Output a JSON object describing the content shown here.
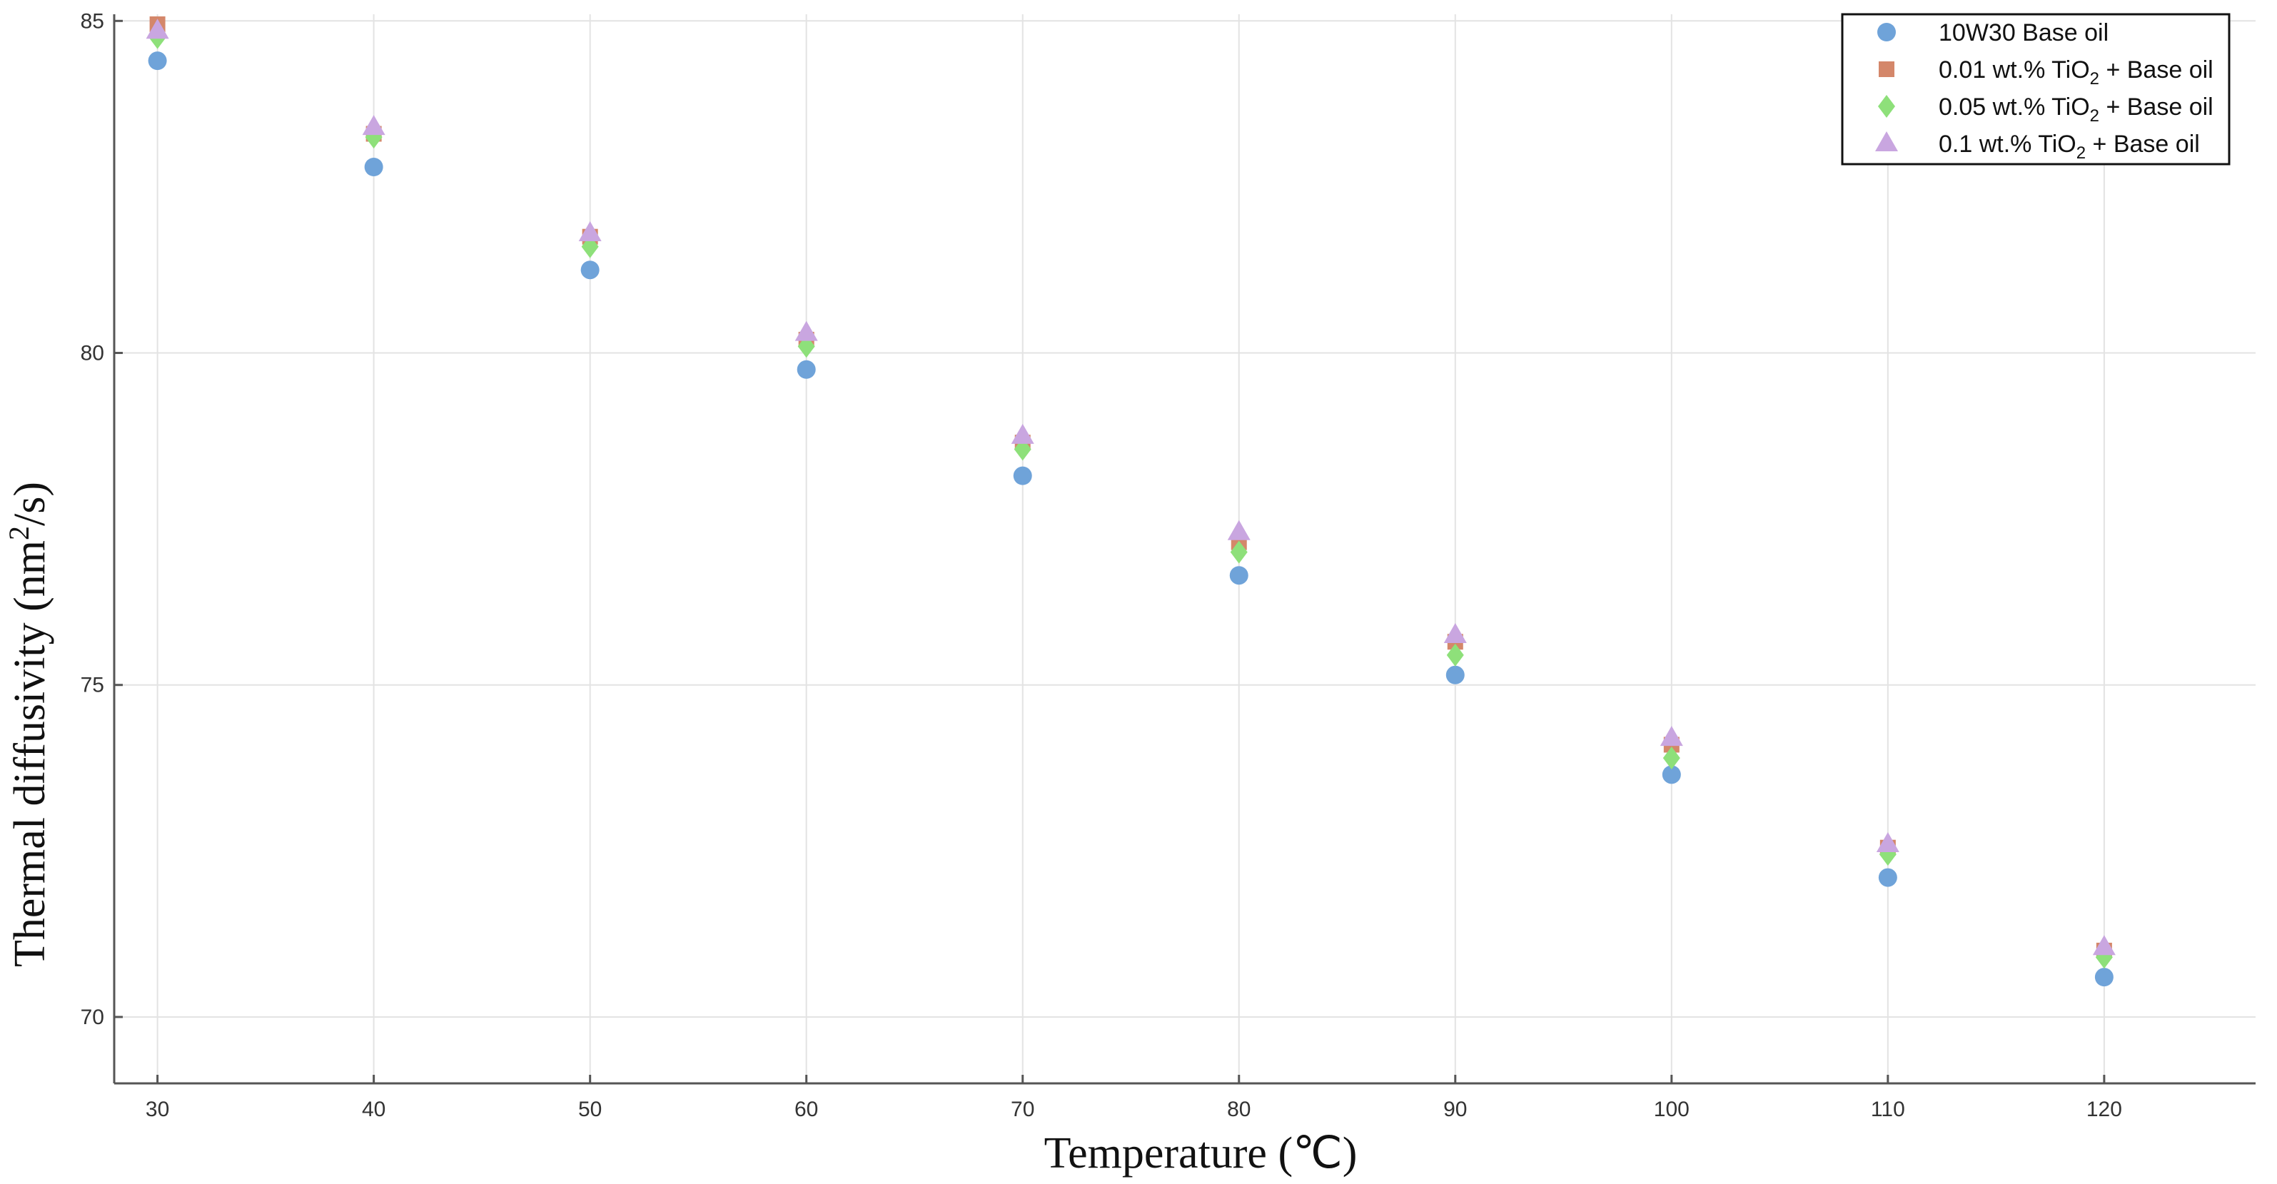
{
  "chart_data": {
    "type": "scatter",
    "title": "",
    "xlabel": "Temperature (℃)",
    "ylabel": "Thermal diffusivity (nm²/s)",
    "xlim": [
      28,
      127
    ],
    "ylim": [
      69,
      85.1
    ],
    "xticks": [
      30,
      40,
      50,
      60,
      70,
      80,
      90,
      100,
      110,
      120
    ],
    "yticks": [
      70,
      75,
      80,
      85
    ],
    "grid": true,
    "legend_position": "top-right",
    "series": [
      {
        "name": "10W30 Base oil",
        "marker": "circle",
        "color": "#6fa3d9",
        "x": [
          30,
          40,
          50,
          60,
          70,
          80,
          90,
          100,
          110,
          120
        ],
        "y": [
          84.4,
          82.8,
          81.25,
          79.75,
          78.15,
          76.65,
          75.15,
          73.65,
          72.1,
          70.6
        ]
      },
      {
        "name": "0.01 wt.% TiO₂ + Base oil",
        "marker": "square",
        "color": "#d4876a",
        "x": [
          30,
          40,
          50,
          60,
          70,
          80,
          90,
          100,
          110,
          120
        ],
        "y": [
          84.95,
          83.3,
          81.75,
          80.2,
          78.65,
          77.15,
          75.65,
          74.1,
          72.55,
          71.0
        ]
      },
      {
        "name": "0.05 wt.% TiO₂ + Base oil",
        "marker": "diamond",
        "color": "#8ee07a",
        "x": [
          30,
          40,
          50,
          60,
          70,
          80,
          90,
          100,
          110,
          120
        ],
        "y": [
          84.75,
          83.25,
          81.6,
          80.1,
          78.55,
          77.0,
          75.45,
          73.9,
          72.45,
          70.9
        ]
      },
      {
        "name": "0.1 wt.% TiO₂ + Base oil",
        "marker": "triangle",
        "color": "#c9a6e0",
        "x": [
          30,
          40,
          50,
          60,
          70,
          80,
          90,
          100,
          110,
          120
        ],
        "y": [
          84.85,
          83.4,
          81.8,
          80.3,
          78.75,
          77.3,
          75.75,
          74.2,
          72.6,
          71.05
        ]
      }
    ]
  },
  "legend": {
    "items": [
      {
        "pre": "10W30 Base oil",
        "sub": "",
        "post": ""
      },
      {
        "pre": "0.01 wt.% TiO",
        "sub": "2",
        "post": " + Base oil"
      },
      {
        "pre": "0.05 wt.% TiO",
        "sub": "2",
        "post": " + Base oil"
      },
      {
        "pre": "0.1 wt.% TiO",
        "sub": "2",
        "post": " + Base oil"
      }
    ]
  },
  "axes": {
    "ylabel_main": "Thermal diffusivity (nm",
    "ylabel_sup": "2",
    "ylabel_end": "/s)"
  }
}
